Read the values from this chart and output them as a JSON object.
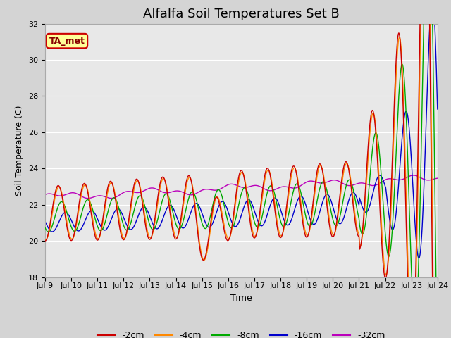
{
  "title": "Alfalfa Soil Temperatures Set B",
  "xlabel": "Time",
  "ylabel": "Soil Temperature (C)",
  "ylim": [
    18,
    32
  ],
  "yticks": [
    18,
    20,
    22,
    24,
    26,
    28,
    30,
    32
  ],
  "x_tick_labels": [
    "Jul 9",
    "Jul 10",
    "Jul 11",
    "Jul 12",
    "Jul 13",
    "Jul 14",
    "Jul 15",
    "Jul 16",
    "Jul 17",
    "Jul 18",
    "Jul 19",
    "Jul 20",
    "Jul 21",
    "Jul 22",
    "Jul 23",
    "Jul 24"
  ],
  "legend_labels": [
    "-2cm",
    "-4cm",
    "-8cm",
    "-16cm",
    "-32cm"
  ],
  "colors": [
    "#cc0000",
    "#ff8800",
    "#00aa00",
    "#0000cc",
    "#bb00bb"
  ],
  "fig_bg": "#d4d4d4",
  "plot_bg": "#e8e8e8",
  "annotation_text": "TA_met",
  "annotation_bg": "#ffff99",
  "annotation_border": "#cc0000",
  "title_fontsize": 13,
  "axis_label_fontsize": 9,
  "tick_fontsize": 8,
  "legend_fontsize": 9
}
